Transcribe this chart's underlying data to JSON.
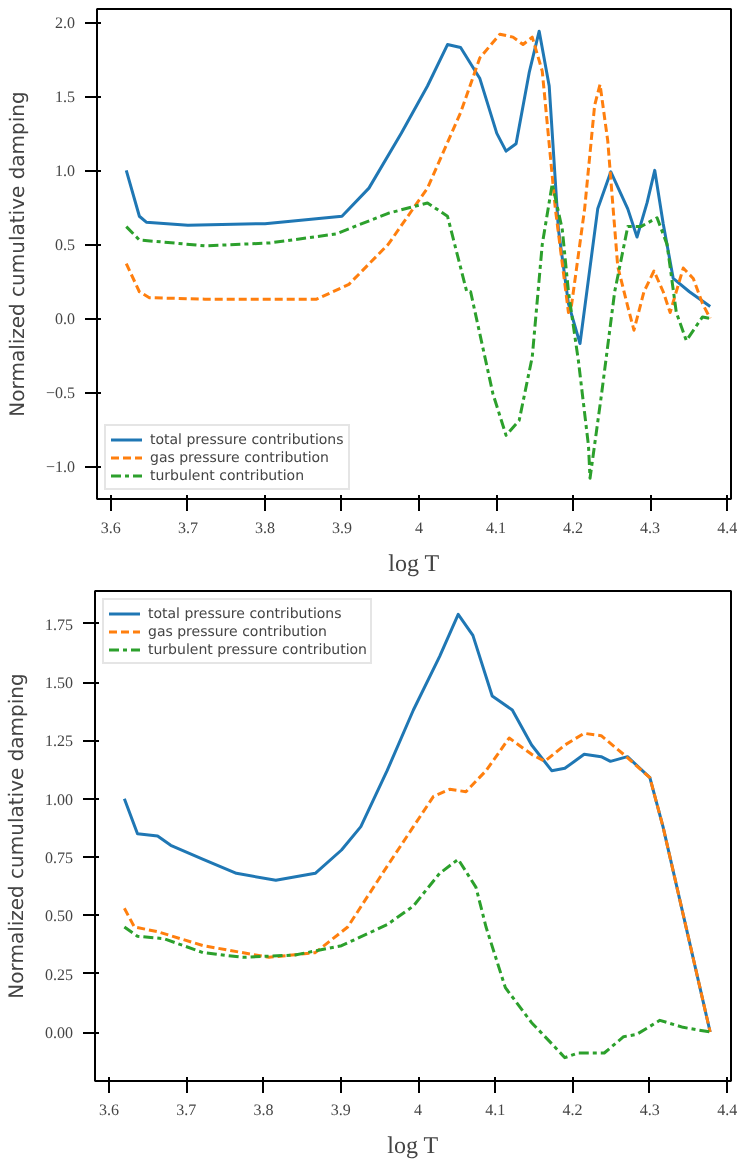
{
  "chart_data": [
    {
      "type": "line",
      "xlabel": "log T",
      "ylabel": "Normalized cumulative damping",
      "xlim": [
        3.582,
        4.405
      ],
      "ylim": [
        -1.22,
        2.09
      ],
      "xticks": [
        3.6,
        3.7,
        3.8,
        3.9,
        4.0,
        4.1,
        4.2,
        4.3,
        4.4
      ],
      "yticks": [
        {
          "value": -1.0,
          "label": "−1.0"
        },
        {
          "value": -0.5,
          "label": "−0.5"
        },
        {
          "value": 0.0,
          "label": "0.0"
        },
        0.5,
        {
          "value": 1.0,
          "label": "1.0"
        },
        1.5,
        {
          "value": 2.0,
          "label": "2.0"
        }
      ],
      "grid": false,
      "legend": "bottom left",
      "series": [
        {
          "name": "total pressure contributions",
          "color": "#1f77b4",
          "line_style": "solid",
          "x": [
            3.62,
            3.637,
            3.646,
            3.7,
            3.8,
            3.9,
            3.935,
            3.977,
            4.011,
            4.037,
            4.054,
            4.079,
            4.101,
            4.113,
            4.126,
            4.143,
            4.156,
            4.169,
            4.181,
            4.194,
            4.209,
            4.232,
            4.249,
            4.271,
            4.283,
            4.296,
            4.306,
            4.317,
            4.33,
            4.351,
            4.378
          ],
          "values": [
            1.0,
            0.69,
            0.65,
            0.63,
            0.64,
            0.69,
            0.88,
            1.25,
            1.57,
            1.85,
            1.83,
            1.62,
            1.25,
            1.13,
            1.18,
            1.66,
            1.94,
            1.57,
            0.6,
            0.1,
            -0.17,
            0.74,
            0.99,
            0.74,
            0.55,
            0.78,
            1.0,
            0.64,
            0.27,
            0.18,
            0.08
          ]
        },
        {
          "name": "gas pressure contribution",
          "color": "#ff7f0e",
          "line_style": "dashed",
          "x": [
            3.62,
            3.637,
            3.65,
            3.722,
            3.867,
            3.909,
            3.96,
            4.011,
            4.054,
            4.079,
            4.105,
            4.122,
            4.135,
            4.147,
            4.16,
            4.177,
            4.194,
            4.198,
            4.215,
            4.228,
            4.235,
            4.245,
            4.258,
            4.271,
            4.279,
            4.292,
            4.305,
            4.317,
            4.326,
            4.343,
            4.356,
            4.368,
            4.378
          ],
          "values": [
            0.37,
            0.18,
            0.14,
            0.13,
            0.13,
            0.23,
            0.5,
            0.88,
            1.39,
            1.76,
            1.92,
            1.9,
            1.85,
            1.9,
            1.67,
            0.74,
            0.04,
            0.09,
            0.74,
            1.44,
            1.58,
            1.2,
            0.35,
            0.08,
            -0.08,
            0.18,
            0.32,
            0.18,
            0.04,
            0.34,
            0.27,
            0.1,
            0.0
          ]
        },
        {
          "name": "turbulent contribution",
          "color": "#2ca02c",
          "line_style": "dashdot",
          "x": [
            3.62,
            3.637,
            3.722,
            3.807,
            3.892,
            3.96,
            4.011,
            4.037,
            4.062,
            4.067,
            4.096,
            4.113,
            4.13,
            4.147,
            4.16,
            4.173,
            4.186,
            4.194,
            4.207,
            4.22,
            4.222,
            4.237,
            4.254,
            4.271,
            4.288,
            4.309,
            4.322,
            4.334,
            4.347,
            4.368,
            4.378
          ],
          "values": [
            0.62,
            0.53,
            0.49,
            0.51,
            0.57,
            0.71,
            0.78,
            0.69,
            0.18,
            0.18,
            -0.51,
            -0.79,
            -0.69,
            -0.26,
            0.5,
            0.91,
            0.6,
            0.18,
            -0.29,
            -0.86,
            -1.08,
            -0.51,
            0.18,
            0.62,
            0.62,
            0.68,
            0.5,
            0.04,
            -0.15,
            0.01,
            0.0
          ]
        }
      ]
    },
    {
      "type": "line",
      "xlabel": "log T",
      "ylabel": "Normalized cumulative damping",
      "xlim": [
        3.582,
        4.405
      ],
      "ylim": [
        -0.21,
        1.89
      ],
      "xticks": [
        3.6,
        3.7,
        3.8,
        3.9,
        4.0,
        4.1,
        4.2,
        4.3,
        4.4
      ],
      "yticks": [
        {
          "value": 0.0,
          "label": "0.00"
        },
        0.25,
        {
          "value": 0.5,
          "label": "0.50"
        },
        0.75,
        {
          "value": 1.0,
          "label": "1.00"
        },
        1.25,
        {
          "value": 1.5,
          "label": "1.50"
        },
        1.75
      ],
      "grid": false,
      "legend": "top left",
      "series": [
        {
          "name": "total pressure contributions",
          "color": "#1f77b4",
          "line_style": "solid",
          "x": [
            3.62,
            3.637,
            3.663,
            3.68,
            3.722,
            3.765,
            3.816,
            3.867,
            3.901,
            3.926,
            3.96,
            3.994,
            4.028,
            4.052,
            4.071,
            4.096,
            4.122,
            4.147,
            4.173,
            4.19,
            4.215,
            4.237,
            4.249,
            4.271,
            4.3,
            4.317,
            4.378
          ],
          "values": [
            1.0,
            0.85,
            0.84,
            0.8,
            0.74,
            0.68,
            0.65,
            0.68,
            0.78,
            0.88,
            1.12,
            1.38,
            1.61,
            1.79,
            1.7,
            1.44,
            1.38,
            1.23,
            1.12,
            1.13,
            1.19,
            1.18,
            1.16,
            1.18,
            1.09,
            0.88,
            0.0
          ]
        },
        {
          "name": "gas pressure contribution",
          "color": "#ff7f0e",
          "line_style": "dashed",
          "x": [
            3.62,
            3.633,
            3.663,
            3.722,
            3.807,
            3.867,
            3.909,
            3.96,
            3.994,
            4.02,
            4.041,
            4.062,
            4.088,
            4.118,
            4.147,
            4.164,
            4.19,
            4.215,
            4.237,
            4.266,
            4.3,
            4.317,
            4.378
          ],
          "values": [
            0.53,
            0.45,
            0.43,
            0.37,
            0.32,
            0.34,
            0.45,
            0.71,
            0.88,
            1.01,
            1.04,
            1.03,
            1.12,
            1.26,
            1.19,
            1.16,
            1.23,
            1.28,
            1.27,
            1.19,
            1.09,
            0.88,
            0.0
          ]
        },
        {
          "name": "turbulent pressure contribution",
          "color": "#2ca02c",
          "line_style": "dashdot",
          "x": [
            3.62,
            3.637,
            3.671,
            3.722,
            3.773,
            3.841,
            3.901,
            3.96,
            3.994,
            4.028,
            4.052,
            4.075,
            4.088,
            4.113,
            4.147,
            4.173,
            4.19,
            4.207,
            4.241,
            4.266,
            4.283,
            4.313,
            4.343,
            4.378
          ],
          "values": [
            0.45,
            0.41,
            0.4,
            0.34,
            0.32,
            0.33,
            0.37,
            0.46,
            0.54,
            0.68,
            0.74,
            0.62,
            0.45,
            0.19,
            0.04,
            -0.05,
            -0.11,
            -0.09,
            -0.09,
            -0.02,
            -0.01,
            0.05,
            0.02,
            0.0
          ]
        }
      ]
    }
  ]
}
